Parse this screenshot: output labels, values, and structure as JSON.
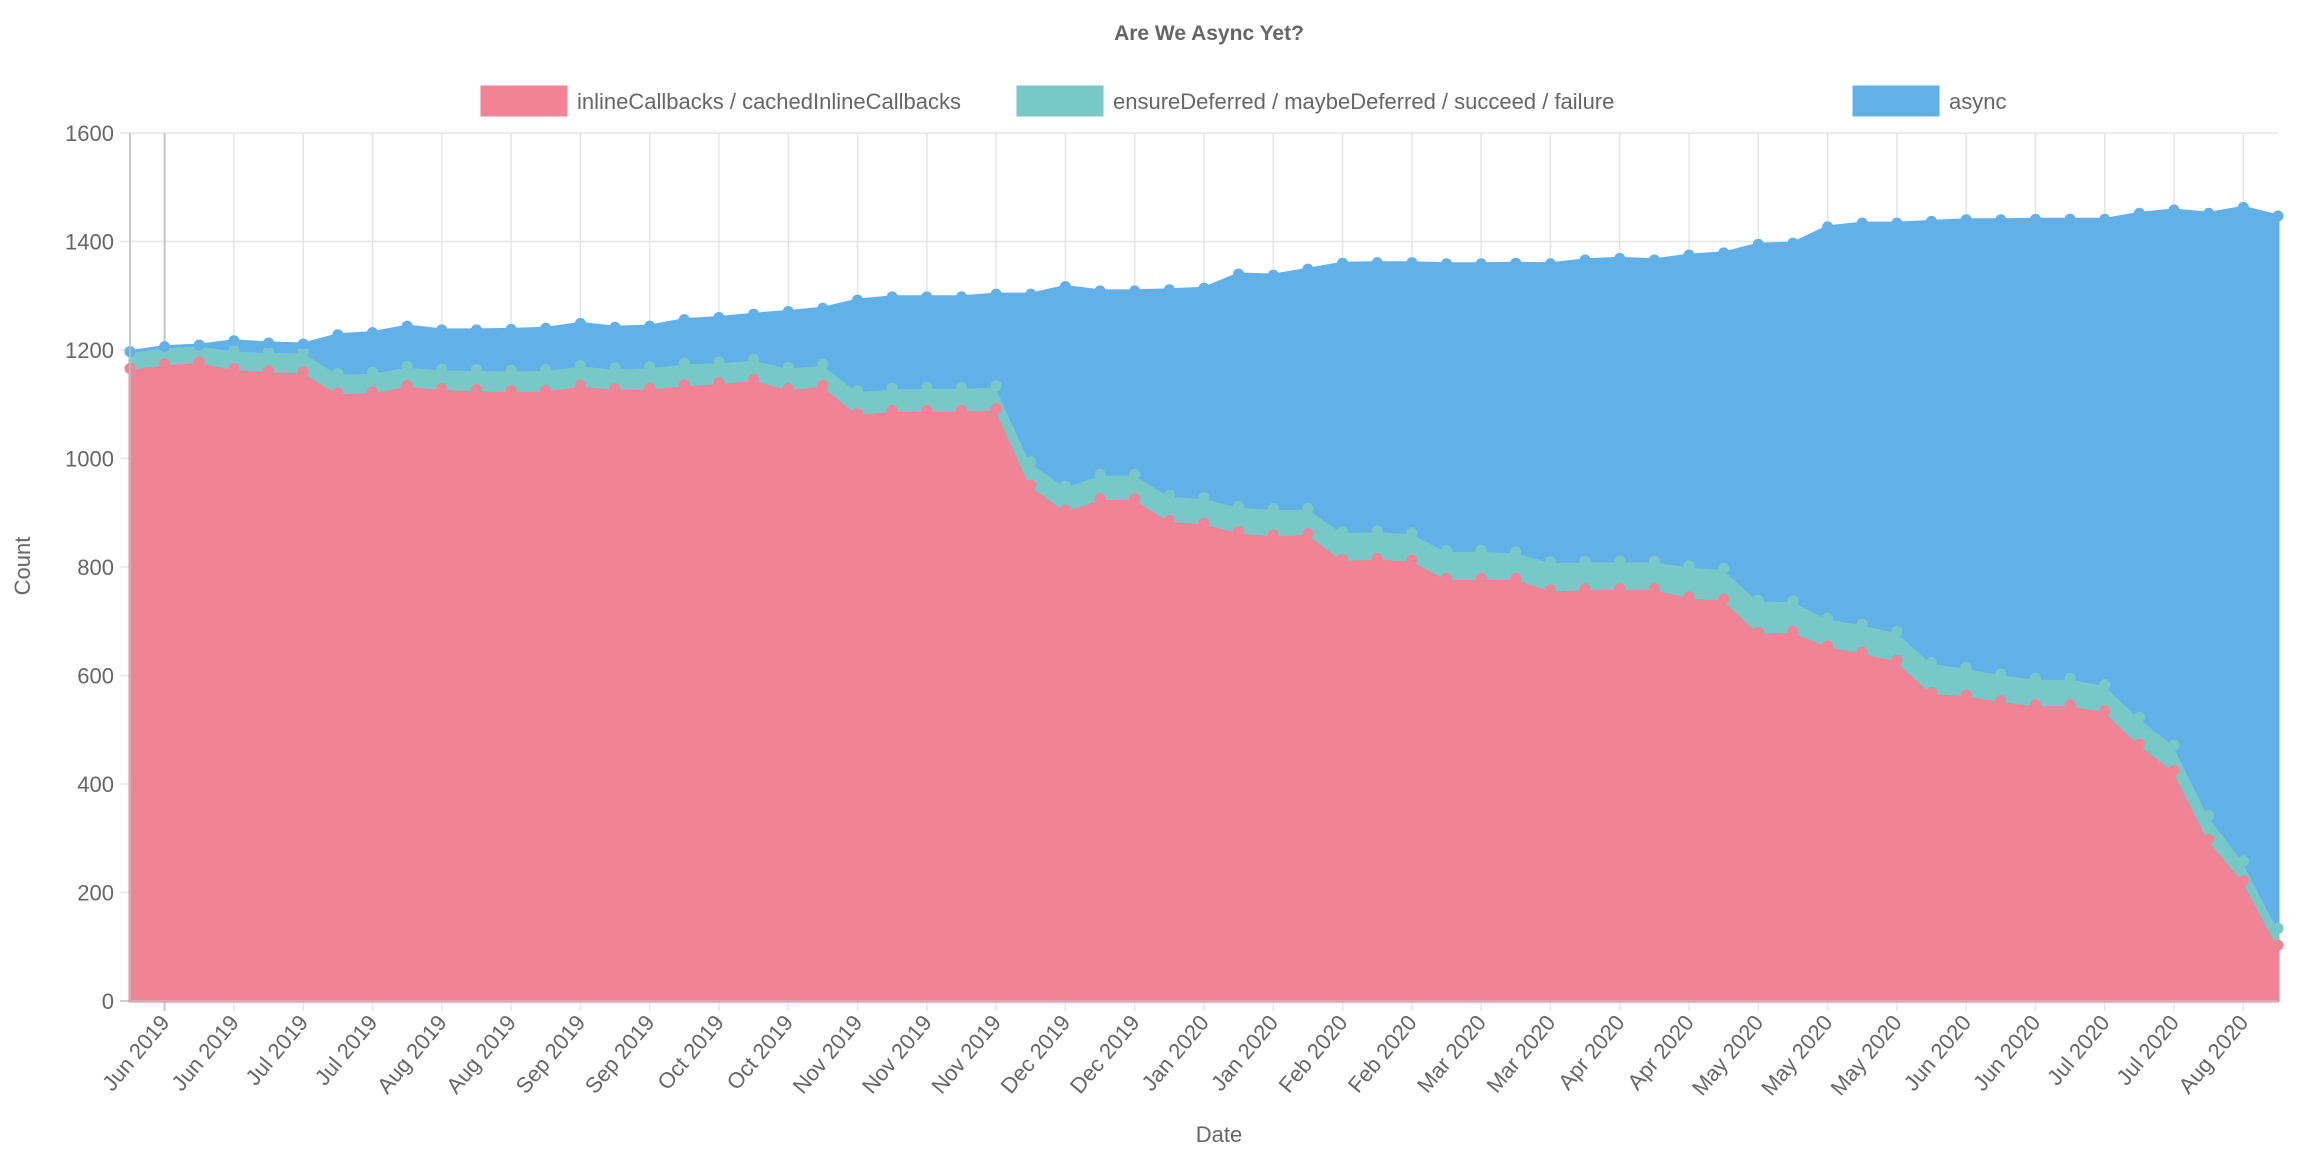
{
  "chart_data": {
    "type": "area",
    "stacked": true,
    "title": "Are We Async Yet?",
    "xlabel": "Date",
    "ylabel": "Count",
    "ylim": [
      0,
      1600
    ],
    "yticks": [
      "0",
      "200",
      "400",
      "600",
      "800",
      "1000",
      "1200",
      "1400",
      "1600"
    ],
    "grid": true,
    "legend_position": "top",
    "x_tick_labels": [
      "Jun 2019",
      "Jun 2019",
      "Jul 2019",
      "Jul 2019",
      "Aug 2019",
      "Aug 2019",
      "Sep 2019",
      "Sep 2019",
      "Oct 2019",
      "Oct 2019",
      "Nov 2019",
      "Nov 2019",
      "Nov 2019",
      "Dec 2019",
      "Dec 2019",
      "Jan 2020",
      "Jan 2020",
      "Feb 2020",
      "Feb 2020",
      "Mar 2020",
      "Mar 2020",
      "Apr 2020",
      "Apr 2020",
      "May 2020",
      "May 2020",
      "May 2020",
      "Jun 2020",
      "Jun 2020",
      "Jul 2020",
      "Jul 2020",
      "Aug 2020"
    ],
    "series": [
      {
        "name": "inlineCallbacks / cachedInlineCallbacks",
        "color": "#f08496",
        "values": [
          1166,
          1175,
          1178,
          1166,
          1162,
          1160,
          1121,
          1123,
          1135,
          1129,
          1127,
          1125,
          1126,
          1135,
          1129,
          1130,
          1136,
          1140,
          1146,
          1129,
          1135,
          1083,
          1089,
          1089,
          1089,
          1092,
          951,
          905,
          926,
          926,
          886,
          881,
          865,
          859,
          862,
          814,
          816,
          813,
          779,
          779,
          779,
          758,
          760,
          760,
          760,
          745,
          741,
          680,
          682,
          655,
          643,
          628,
          569,
          564,
          554,
          546,
          546,
          535,
          474,
          425,
          298,
          222,
          103
        ]
      },
      {
        "name": "ensureDeferred / maybeDeferred / succeed / failure",
        "color": "#79c8c8",
        "values": [
          31,
          31,
          31,
          34,
          35,
          37,
          36,
          36,
          35,
          36,
          37,
          38,
          38,
          37,
          38,
          39,
          40,
          38,
          37,
          39,
          39,
          42,
          41,
          42,
          42,
          42,
          43,
          44,
          45,
          45,
          46,
          47,
          47,
          49,
          46,
          51,
          51,
          50,
          51,
          52,
          49,
          52,
          51,
          51,
          51,
          57,
          56,
          59,
          56,
          51,
          52,
          53,
          55,
          51,
          49,
          49,
          49,
          48,
          49,
          47,
          44,
          36,
          31
        ]
      },
      {
        "name": "async",
        "color": "#61b0e8",
        "values": [
          0,
          0,
          0,
          17,
          16,
          14,
          71,
          73,
          74,
          72,
          73,
          75,
          76,
          77,
          75,
          75,
          80,
          82,
          83,
          103,
          103,
          167,
          168,
          167,
          167,
          169,
          309,
          368,
          338,
          338,
          379,
          386,
          428,
          430,
          441,
          495,
          494,
          498,
          529,
          528,
          532,
          549,
          555,
          558,
          555,
          573,
          582,
          656,
          659,
          721,
          739,
          753,
          813,
          825,
          837,
          846,
          846,
          858,
          929,
          986,
          1110,
          1205,
          1313
        ]
      }
    ]
  }
}
